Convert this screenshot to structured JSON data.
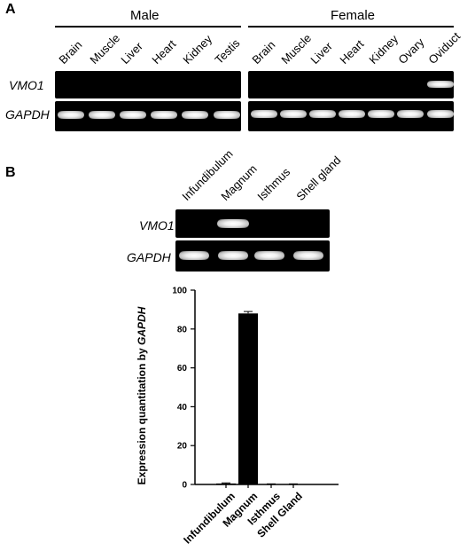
{
  "panel_a": {
    "label": "A",
    "male_label": "Male",
    "female_label": "Female",
    "male_lanes": [
      "Brain",
      "Muscle",
      "Liver",
      "Heart",
      "Kidney",
      "Testis"
    ],
    "female_lanes": [
      "Brain",
      "Muscle",
      "Liver",
      "Heart",
      "Kidney",
      "Ovary",
      "Oviduct"
    ],
    "genes": [
      "VMO1",
      "GAPDH"
    ]
  },
  "panel_b": {
    "label": "B",
    "lanes": [
      "Infundibulum",
      "Magnum",
      "Isthmus",
      "Shell gland"
    ],
    "genes": [
      "VMO1",
      "GAPDH"
    ]
  },
  "chart_data": {
    "type": "bar",
    "categories": [
      "Infundibulum",
      "Magnum",
      "Isthmus",
      "Shell Gland"
    ],
    "values": [
      0.5,
      88,
      0.2,
      0.2
    ],
    "errors": [
      0.3,
      1.0,
      0.1,
      0.1
    ],
    "title": "",
    "xlabel": "",
    "ylabel_prefix": "Expression quantitation by ",
    "ylabel_gene": "GAPDH",
    "ylim": [
      0,
      100
    ],
    "yticks": [
      "0",
      "20",
      "40",
      "60",
      "80",
      "100"
    ],
    "grid": false,
    "bar_color": "#000000"
  }
}
